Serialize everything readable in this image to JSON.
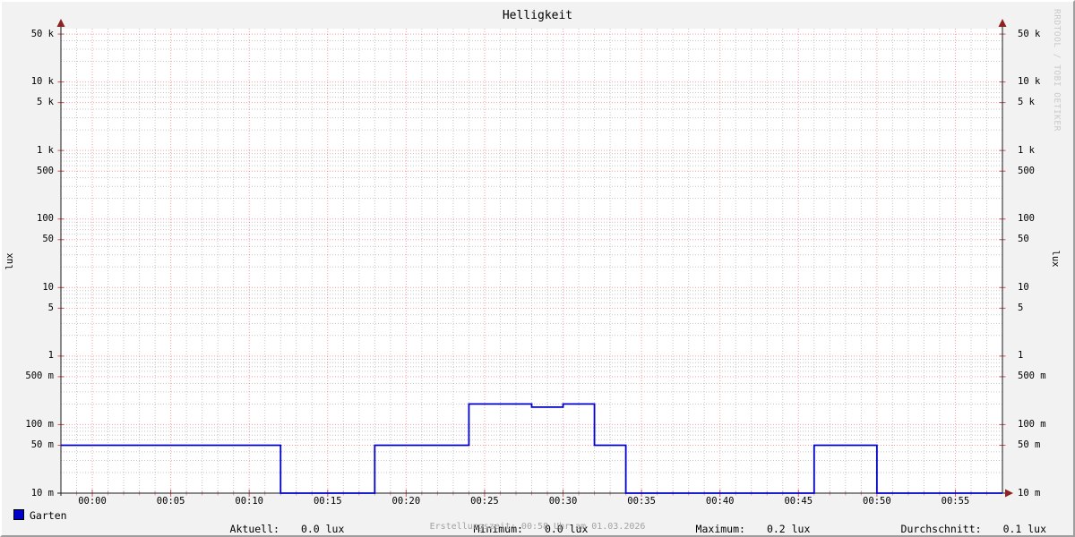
{
  "title": "Helligkeit",
  "watermark": "RRDTOOL / TOBI OETIKER",
  "footer": "Erstellungszeit: 00:58 Uhr am 01.03.2026",
  "y_axis_labels": {
    "left": "lux",
    "right": "lux"
  },
  "chart_data": {
    "type": "line",
    "title": "Helligkeit",
    "ylabel": "lux",
    "y_scale": "log",
    "ylim": [
      0.01,
      60000
    ],
    "x_range": [
      "23:58",
      "00:58"
    ],
    "x_ticks": [
      "00:00",
      "00:05",
      "00:10",
      "00:15",
      "00:20",
      "00:25",
      "00:30",
      "00:35",
      "00:40",
      "00:45",
      "00:50",
      "00:55"
    ],
    "x_minor_step_minutes": 1,
    "y_ticks": [
      {
        "label": "50 k",
        "value": 50000
      },
      {
        "label": "10 k",
        "value": 10000
      },
      {
        "label": "5 k",
        "value": 5000
      },
      {
        "label": "1 k",
        "value": 1000
      },
      {
        "label": "500",
        "value": 500
      },
      {
        "label": "100",
        "value": 100
      },
      {
        "label": "50",
        "value": 50
      },
      {
        "label": "10",
        "value": 10
      },
      {
        "label": "5",
        "value": 5
      },
      {
        "label": "1",
        "value": 1
      },
      {
        "label": "500 m",
        "value": 0.5
      },
      {
        "label": "100 m",
        "value": 0.1
      },
      {
        "label": "50 m",
        "value": 0.05
      },
      {
        "label": "10 m",
        "value": 0.01
      }
    ],
    "grid": true,
    "legend_position": "bottom",
    "series": [
      {
        "name": "Garten",
        "color": "#0000c8",
        "unit": "lux",
        "segments": [
          {
            "from": "23:58",
            "to": "00:12",
            "value": 0.05
          },
          {
            "from": "00:12",
            "to": "00:18",
            "value": 0.01
          },
          {
            "from": "00:18",
            "to": "00:24",
            "value": 0.05
          },
          {
            "from": "00:24",
            "to": "00:28",
            "value": 0.2
          },
          {
            "from": "00:28",
            "to": "00:30",
            "value": 0.18
          },
          {
            "from": "00:30",
            "to": "00:32",
            "value": 0.2
          },
          {
            "from": "00:32",
            "to": "00:34",
            "value": 0.05
          },
          {
            "from": "00:34",
            "to": "00:46",
            "value": 0.01
          },
          {
            "from": "00:46",
            "to": "00:50",
            "value": 0.05
          },
          {
            "from": "00:50",
            "to": "00:58",
            "value": 0.01
          }
        ]
      }
    ],
    "stats": [
      {
        "label": "Aktuell:",
        "value": "0.0 lux"
      },
      {
        "label": "Minimum:",
        "value": "0.0 lux"
      },
      {
        "label": "Maximum:",
        "value": "0.2 lux"
      },
      {
        "label": "Durchschnitt:",
        "value": "0.1 lux"
      }
    ],
    "colors": {
      "line": "#0000c8",
      "grid_major": "#ff0000",
      "grid_minor": "#a0a0a0",
      "axis": "#1a1a1a",
      "arrow": "#8b2323",
      "background": "#f2f2f2",
      "canvas": "#ffffff"
    }
  }
}
